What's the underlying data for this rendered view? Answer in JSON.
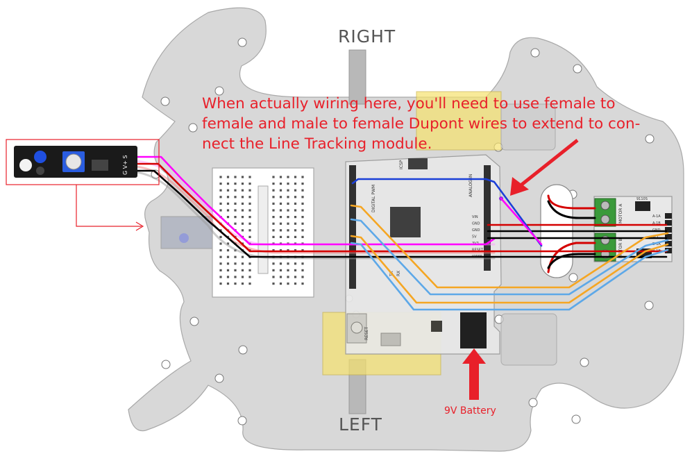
{
  "labels": {
    "right": "RIGHT",
    "left": "LEFT",
    "battery": "9V Battery"
  },
  "note": {
    "line1": "When actually wiring here, you'll need to use female to",
    "line2": "female and male to female Dupont wires to extend to con-",
    "line3": "nect the Line Tracking module."
  },
  "sensor": {
    "pins": "G V+ S"
  },
  "arduino": {
    "power_pins": [
      "VIN",
      "GND",
      "GND",
      "5V",
      "3V3",
      "RESET",
      "IOREF"
    ],
    "analog_header": "ANALOG IN",
    "digital_header": "DIGITAL PWM",
    "icsp": "ICSP",
    "reset": "RESET",
    "tx": "TX",
    "rx": "RX"
  },
  "motor_driver": {
    "label_a": "MOTOR A",
    "label_b": "MOTOR B",
    "pins": [
      "A-1A",
      "A-1B",
      "GND",
      "VCC",
      "B-1A",
      "B-1B"
    ],
    "chip": "9110S"
  },
  "colors": {
    "chassis": "#d8d8d8",
    "annotation": "#e8202a",
    "wire_magenta": "#ff00ff",
    "wire_red": "#d40000",
    "wire_black": "#000000",
    "wire_blue": "#1a3fd8",
    "wire_orange": "#f5a623",
    "wire_lightblue": "#5da8e8",
    "driver_board": "#e8e8e8",
    "terminal": "#3a9a3a",
    "motor": "#cccccc",
    "motor_yellow": "#f6e26e"
  }
}
